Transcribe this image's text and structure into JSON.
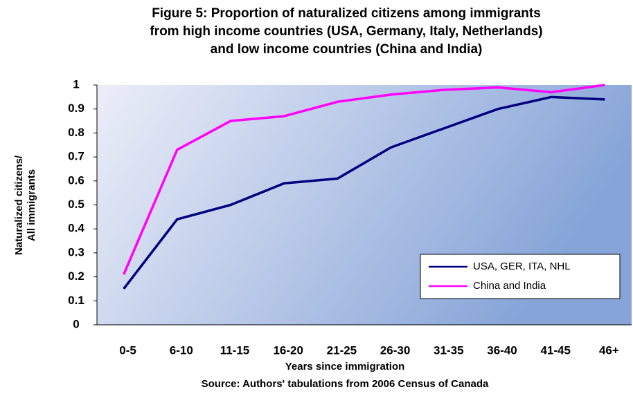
{
  "chart_data": {
    "type": "line",
    "title": [
      "Figure 5: Proportion of naturalized citizens among immigrants",
      "from high income countries (USA, Germany, Italy, Netherlands)",
      "and low income countries (China and India)"
    ],
    "x_label": "Years since  immigration",
    "y_label": [
      "Naturalized citizens/",
      "All immigrants"
    ],
    "source": "Source: Authors' tabulations from 2006 Census of Canada",
    "categories": [
      "0-5",
      "6-10",
      "11-15",
      "16-20",
      "21-25",
      "26-30",
      "31-35",
      "36-40",
      "41-45",
      "46+"
    ],
    "series": [
      {
        "name": "USA, GER, ITA, NHL",
        "color": "#000080",
        "values": [
          0.15,
          0.44,
          0.5,
          0.59,
          0.61,
          0.74,
          0.82,
          0.9,
          0.95,
          0.94
        ]
      },
      {
        "name": "China and India",
        "color": "#ff00ff",
        "values": [
          0.21,
          0.73,
          0.85,
          0.87,
          0.93,
          0.96,
          0.98,
          0.99,
          0.97,
          1.0
        ]
      }
    ],
    "ylim": [
      0,
      1
    ],
    "yticks": [
      0,
      0.1,
      0.2,
      0.3,
      0.4,
      0.5,
      0.6,
      0.7,
      0.8,
      0.9,
      1
    ],
    "legend": "lower right"
  }
}
